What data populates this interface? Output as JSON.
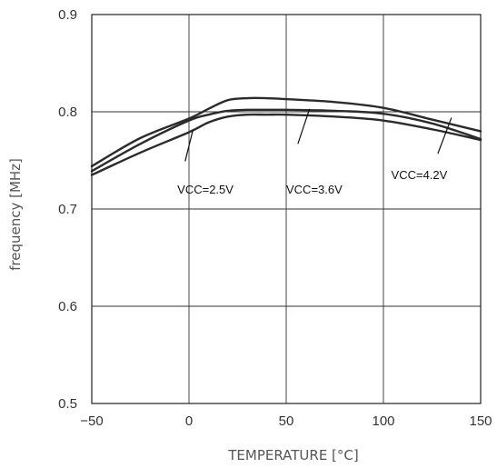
{
  "chart_data": {
    "type": "line",
    "xlabel": "TEMPERATURE [°C]",
    "ylabel": "frequency [MHz]",
    "xlim": [
      -50,
      150
    ],
    "ylim": [
      0.5,
      0.9
    ],
    "xticks": [
      "-50",
      "0",
      "50",
      "100",
      "150"
    ],
    "yticks": [
      "0.5",
      "0.6",
      "0.7",
      "0.8",
      "0.9"
    ],
    "grid": true,
    "legend": "none",
    "series": [
      {
        "name": "VCC=2.5V",
        "color": "#2b2b2b",
        "x": [
          -50,
          -25,
          0,
          10,
          20,
          30,
          40,
          50,
          75,
          100,
          125,
          150
        ],
        "y": [
          0.735,
          0.758,
          0.779,
          0.789,
          0.795,
          0.797,
          0.797,
          0.797,
          0.795,
          0.791,
          0.782,
          0.771
        ]
      },
      {
        "name": "VCC=3.6V",
        "color": "#2b2b2b",
        "x": [
          -50,
          -25,
          0,
          10,
          20,
          30,
          40,
          50,
          75,
          100,
          125,
          150
        ],
        "y": [
          0.739,
          0.767,
          0.791,
          0.797,
          0.801,
          0.802,
          0.802,
          0.802,
          0.801,
          0.798,
          0.788,
          0.772
        ]
      },
      {
        "name": "VCC=4.2V",
        "color": "#2b2b2b",
        "x": [
          -50,
          -25,
          0,
          10,
          20,
          30,
          40,
          50,
          75,
          100,
          125,
          150
        ],
        "y": [
          0.744,
          0.773,
          0.793,
          0.803,
          0.812,
          0.814,
          0.814,
          0.813,
          0.81,
          0.804,
          0.792,
          0.78
        ]
      }
    ],
    "annotations": [
      {
        "text": "VCC=2.5V",
        "x": -6,
        "y": 0.716,
        "pointer_from": [
          -2,
          0.749
        ],
        "pointer_to": [
          2,
          0.781
        ]
      },
      {
        "text": "VCC=3.6V",
        "x": 50,
        "y": 0.716,
        "pointer_from": [
          56,
          0.767
        ],
        "pointer_to": [
          62,
          0.803
        ]
      },
      {
        "text": "VCC=4.2V",
        "x": 104,
        "y": 0.731,
        "pointer_from": [
          128,
          0.757
        ],
        "pointer_to": [
          135,
          0.794
        ]
      }
    ]
  }
}
